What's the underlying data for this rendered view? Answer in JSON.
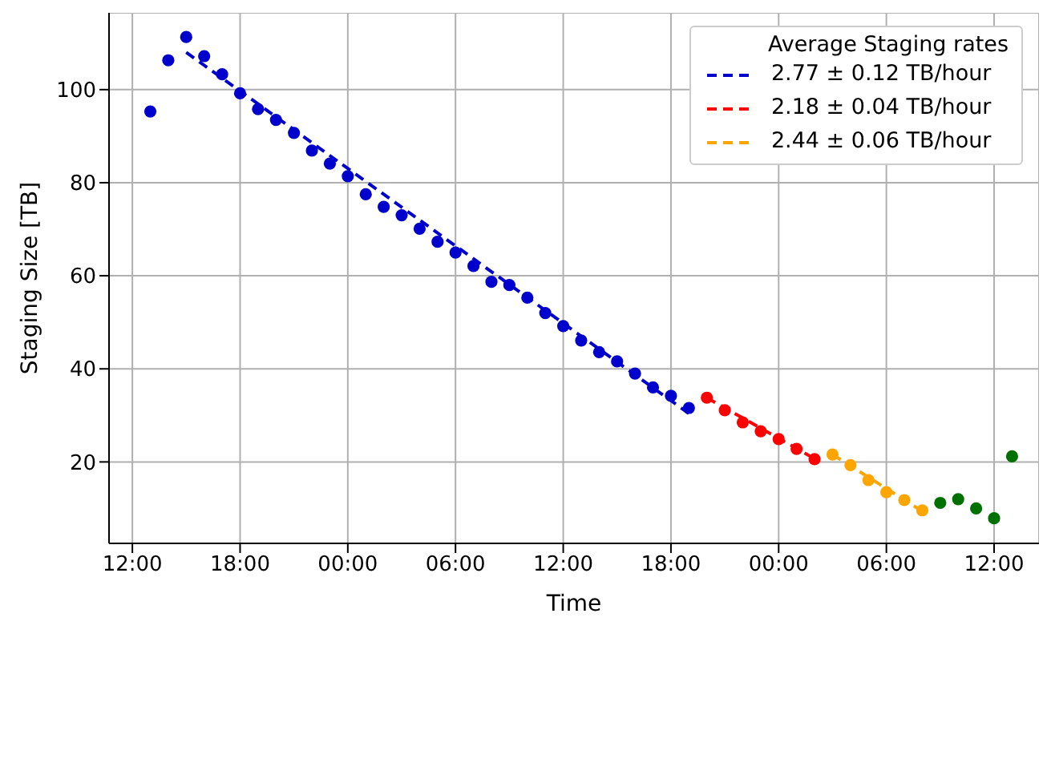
{
  "chart_data": {
    "type": "scatter",
    "xlabel": "Time",
    "ylabel": "Staging Size [TB]",
    "legend_title": "Average Staging rates",
    "legend": "top right",
    "grid": true,
    "xlim": [
      "--01-01T10:42",
      "--01-03T14:30"
    ],
    "ylim": [
      2.5,
      116.5
    ],
    "xticks": [
      {
        "value": "--01-01T12:00",
        "label": "12:00"
      },
      {
        "value": "--01-01T18:00",
        "label": "18:00"
      },
      {
        "value": "--01-02T00:00",
        "label": "00:00"
      },
      {
        "value": "--01-02T06:00",
        "label": "06:00"
      },
      {
        "value": "--01-02T12:00",
        "label": "12:00"
      },
      {
        "value": "--01-02T18:00",
        "label": "18:00"
      },
      {
        "value": "--01-03T00:00",
        "label": "00:00"
      },
      {
        "value": "--01-03T06:00",
        "label": "06:00"
      },
      {
        "value": "--01-03T12:00",
        "label": "12:00"
      }
    ],
    "yticks": [
      20,
      40,
      60,
      80,
      100
    ],
    "series": [
      {
        "type": "scatter",
        "marker": "circle",
        "color": "#0000cc",
        "x": [
          "--01-01T13:00",
          "--01-01T14:00",
          "--01-01T15:00",
          "--01-01T16:00",
          "--01-01T17:00",
          "--01-01T18:00",
          "--01-01T19:00",
          "--01-01T20:00",
          "--01-01T21:00",
          "--01-01T22:00",
          "--01-01T23:00",
          "--01-02T00:00",
          "--01-02T01:00",
          "--01-02T02:00",
          "--01-02T03:00",
          "--01-02T04:00",
          "--01-02T05:00",
          "--01-02T06:00",
          "--01-02T07:00",
          "--01-02T08:00",
          "--01-02T09:00",
          "--01-02T10:00",
          "--01-02T11:00",
          "--01-02T12:00",
          "--01-02T13:00",
          "--01-02T14:00",
          "--01-02T15:00",
          "--01-02T16:00",
          "--01-02T17:00",
          "--01-02T18:00",
          "--01-02T19:00"
        ],
        "values": [
          95.3,
          106.3,
          111.3,
          107.2,
          103.3,
          99.2,
          95.8,
          93.5,
          90.7,
          86.9,
          84.1,
          81.4,
          77.5,
          74.8,
          73.0,
          70.1,
          67.3,
          65.0,
          62.1,
          58.7,
          58.0,
          55.3,
          52.0,
          49.2,
          46.1,
          43.6,
          41.6,
          39.0,
          36.0,
          34.2,
          31.6
        ]
      },
      {
        "type": "scatter",
        "marker": "circle",
        "color": "#ff0000",
        "x": [
          "--01-02T20:00",
          "--01-02T21:00",
          "--01-02T22:00",
          "--01-02T23:00",
          "--01-03T00:00",
          "--01-03T01:00",
          "--01-03T02:00"
        ],
        "values": [
          33.8,
          31.1,
          28.5,
          26.6,
          24.9,
          22.8,
          20.6
        ]
      },
      {
        "type": "scatter",
        "marker": "circle",
        "color": "#ffa500",
        "x": [
          "--01-03T03:00",
          "--01-03T04:00",
          "--01-03T05:00",
          "--01-03T06:00",
          "--01-03T07:00",
          "--01-03T08:00"
        ],
        "values": [
          21.6,
          19.3,
          16.1,
          13.5,
          11.8,
          9.6
        ]
      },
      {
        "type": "scatter",
        "marker": "circle",
        "color": "#007000",
        "x": [
          "--01-03T09:00",
          "--01-03T10:00",
          "--01-03T11:00",
          "--01-03T12:00",
          "--01-03T13:00"
        ],
        "values": [
          11.2,
          12.0,
          10.0,
          7.9,
          21.2
        ]
      },
      {
        "type": "line",
        "name": "2.77 ± 0.12 TB/hour",
        "line_style": "dashed",
        "marker": "none",
        "color": "#0000cc",
        "x": [
          "--01-01T15:00",
          "--01-02T19:00"
        ],
        "values": [
          108.0,
          30.4
        ]
      },
      {
        "type": "line",
        "name": "2.18 ± 0.04 TB/hour",
        "line_style": "dashed",
        "marker": "none",
        "color": "#ff0000",
        "x": [
          "--01-02T20:00",
          "--01-03T02:00"
        ],
        "values": [
          33.8,
          20.7
        ]
      },
      {
        "type": "line",
        "name": "2.44 ± 0.06 TB/hour",
        "line_style": "dashed",
        "marker": "none",
        "color": "#ffa500",
        "x": [
          "--01-03T03:00",
          "--01-03T08:00"
        ],
        "values": [
          21.6,
          9.4
        ]
      }
    ]
  }
}
